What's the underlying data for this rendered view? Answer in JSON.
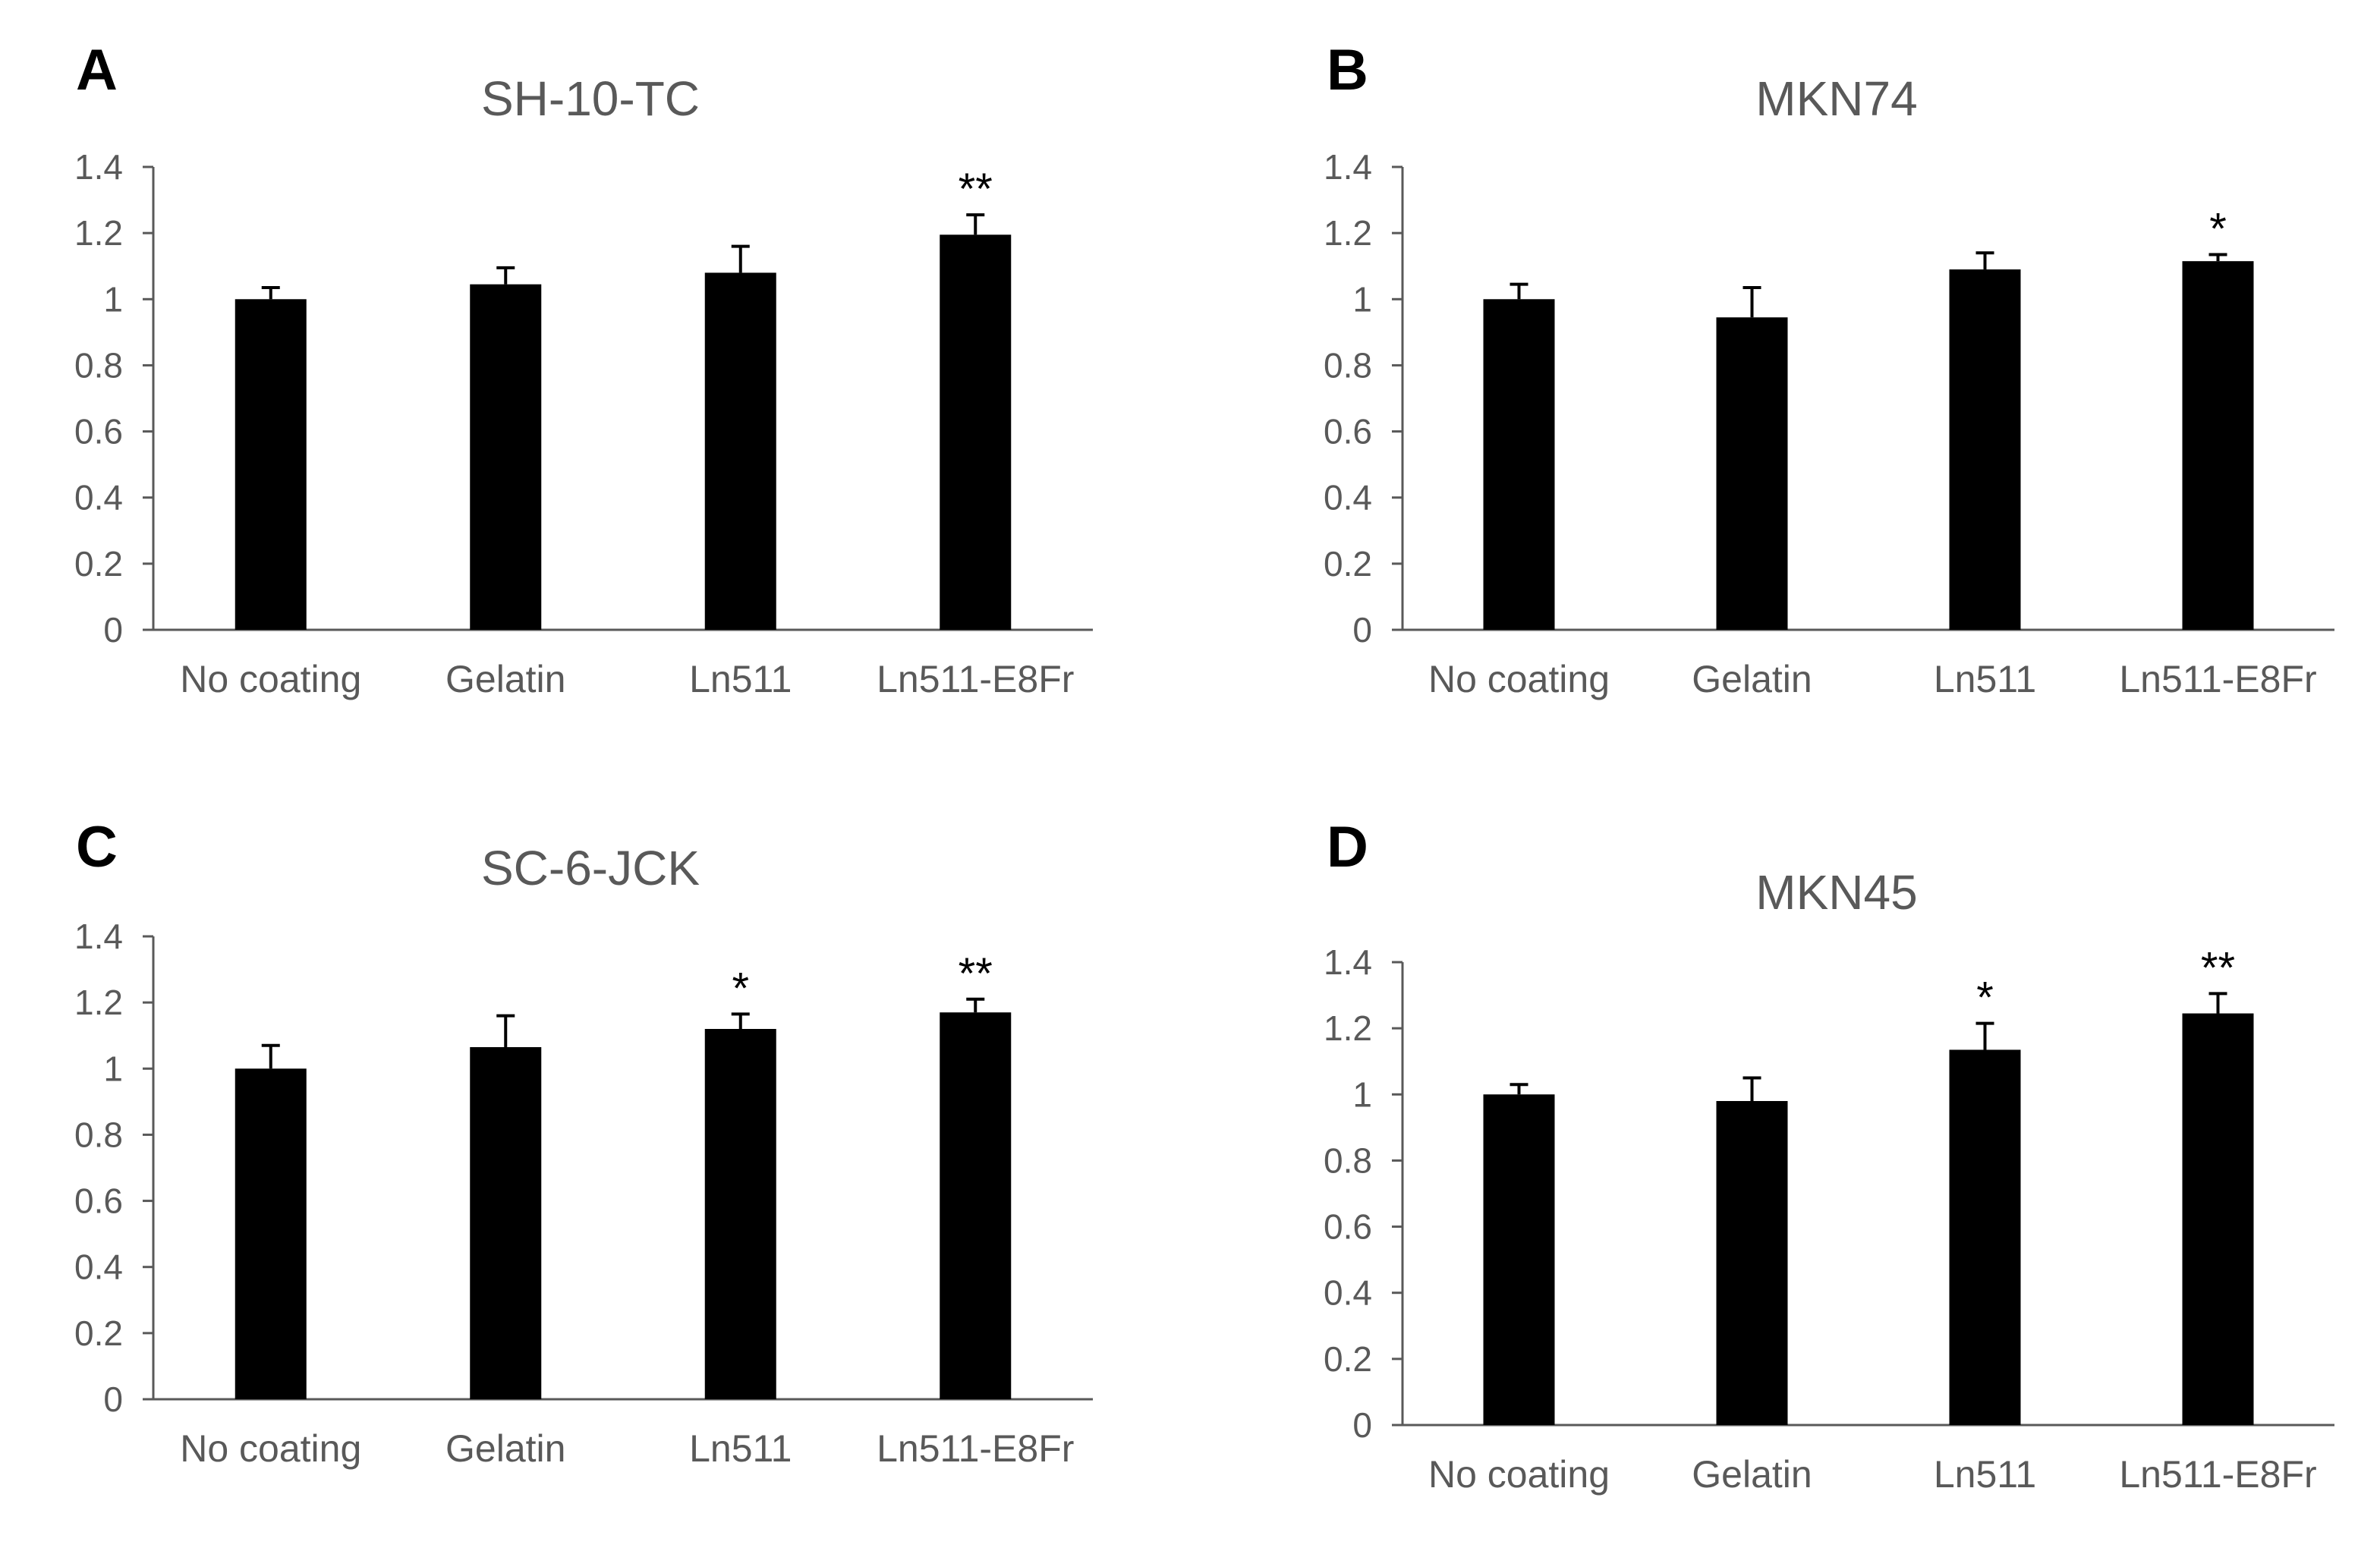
{
  "colors": {
    "bar": "#000000",
    "axis": "#595959",
    "text": "#595959",
    "letter": "#000000"
  },
  "chart_data": [
    {
      "type": "bar",
      "panel": "A",
      "title": "SH-10-TC",
      "categories": [
        "No coating",
        "Gelatin",
        "Ln511",
        "Ln511-E8Fr"
      ],
      "values": [
        1.0,
        1.045,
        1.08,
        1.195
      ],
      "errors": [
        0.035,
        0.05,
        0.08,
        0.06
      ],
      "significance": [
        "",
        "",
        "",
        "**"
      ],
      "ylim": [
        0,
        1.4
      ],
      "yticks": [
        "0",
        "0.2",
        "0.4",
        "0.6",
        "0.8",
        "1",
        "1.2",
        "1.4"
      ],
      "xlabel": "",
      "ylabel": ""
    },
    {
      "type": "bar",
      "panel": "B",
      "title": "MKN74",
      "categories": [
        "No coating",
        "Gelatin",
        "Ln511",
        "Ln511-E8Fr"
      ],
      "values": [
        1.0,
        0.945,
        1.09,
        1.115
      ],
      "errors": [
        0.045,
        0.09,
        0.05,
        0.02
      ],
      "significance": [
        "",
        "",
        "",
        "*"
      ],
      "ylim": [
        0,
        1.4
      ],
      "yticks": [
        "0",
        "0.2",
        "0.4",
        "0.6",
        "0.8",
        "1",
        "1.2",
        "1.4"
      ],
      "xlabel": "",
      "ylabel": ""
    },
    {
      "type": "bar",
      "panel": "C",
      "title": "SC-6-JCK",
      "categories": [
        "No coating",
        "Gelatin",
        "Ln511",
        "Ln511-E8Fr"
      ],
      "values": [
        1.0,
        1.065,
        1.12,
        1.17
      ],
      "errors": [
        0.07,
        0.095,
        0.045,
        0.04
      ],
      "significance": [
        "",
        "",
        "*",
        "**"
      ],
      "ylim": [
        0,
        1.4
      ],
      "yticks": [
        "0",
        "0.2",
        "0.4",
        "0.6",
        "0.8",
        "1",
        "1.2",
        "1.4"
      ],
      "xlabel": "",
      "ylabel": ""
    },
    {
      "type": "bar",
      "panel": "D",
      "title": "MKN45",
      "categories": [
        "No coating",
        "Gelatin",
        "Ln511",
        "Ln511-E8Fr"
      ],
      "values": [
        1.0,
        0.98,
        1.135,
        1.245
      ],
      "errors": [
        0.03,
        0.07,
        0.08,
        0.06
      ],
      "significance": [
        "",
        "",
        "*",
        "**"
      ],
      "ylim": [
        0,
        1.4
      ],
      "yticks": [
        "0",
        "0.2",
        "0.4",
        "0.6",
        "0.8",
        "1",
        "1.2",
        "1.4"
      ],
      "xlabel": "",
      "ylabel": ""
    }
  ]
}
